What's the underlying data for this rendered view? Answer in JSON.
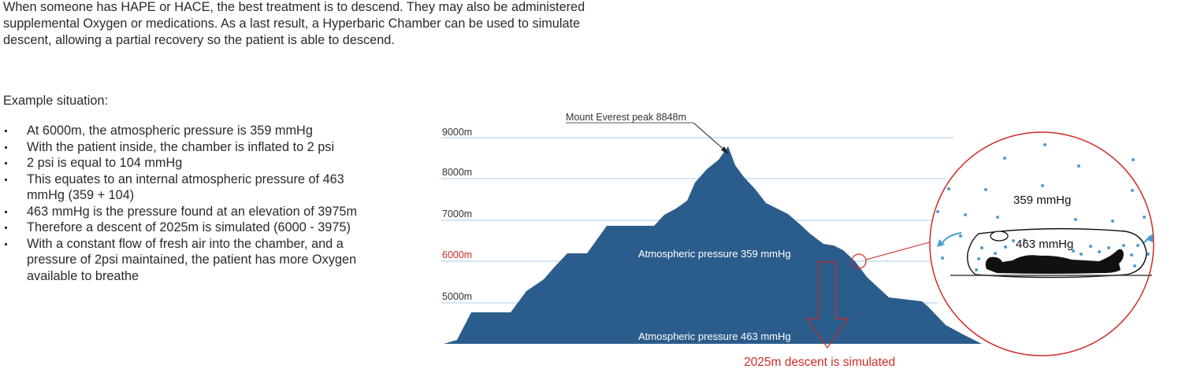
{
  "intro_text": "When someone has HAPE or HACE, the best treatment is to descend. They may also be administered supplemental Oxygen or medications. As a last result, a Hyperbaric Chamber can be used to simulate descent, allowing a partial recovery so the patient is able to descend.",
  "example_heading": "Example situation:",
  "bullets": [
    "At 6000m, the atmospheric pressure is 359 mmHg",
    "With the patient inside, the chamber is inflated to 2 psi",
    "2 psi is equal to 104 mmHg",
    "This equates to an internal atmospheric pressure of 463 mmHg (359 + 104)",
    "463 mmHg is the pressure found at an elevation of 3975m",
    "Therefore a descent of 2025m is simulated (6000 - 3975)",
    "With a constant flow of fresh air into the chamber, and a pressure of 2psi maintained, the patient has more Oxygen available to breathe"
  ],
  "diagram": {
    "peak_label": "Mount Everest peak 8848m",
    "elevations": [
      "9000m",
      "8000m",
      "7000m",
      "6000m",
      "5000m"
    ],
    "pressure_upper": "Atmospheric pressure 359 mmHg",
    "pressure_lower": "Atmospheric pressure 463 mmHg",
    "descent_label": "2025m descent is simulated",
    "chamber_outside": "359 mmHg",
    "chamber_inside": "463 mmHg",
    "colors": {
      "mountain": "#2b5d8c",
      "highlight": "#cf2a2a",
      "gridline": "#a9cbe6",
      "air_dots": "#4a9fd0"
    }
  }
}
